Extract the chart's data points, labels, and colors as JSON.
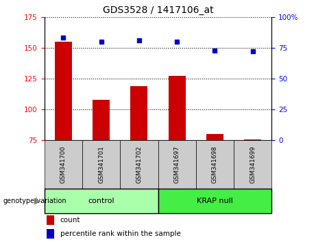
{
  "title": "GDS3528 / 1417106_at",
  "samples": [
    "GSM341700",
    "GSM341701",
    "GSM341702",
    "GSM341697",
    "GSM341698",
    "GSM341699"
  ],
  "bar_values": [
    155,
    108,
    119,
    127,
    80,
    76
  ],
  "scatter_values": [
    83,
    80,
    81,
    80,
    73,
    72
  ],
  "ylim_left": [
    75,
    175
  ],
  "ylim_right": [
    0,
    100
  ],
  "yticks_left": [
    75,
    100,
    125,
    150,
    175
  ],
  "yticks_right": [
    0,
    25,
    50,
    75,
    100
  ],
  "bar_color": "#cc0000",
  "scatter_color": "#0000cc",
  "control_label": "control",
  "krap_label": "KRAP null",
  "genotype_label": "genotype/variation",
  "legend_count": "count",
  "legend_percentile": "percentile rank within the sample",
  "control_color": "#aaffaa",
  "krap_color": "#44ee44",
  "ticklabel_bg": "#cccccc",
  "n_control": 3,
  "n_krap": 3
}
